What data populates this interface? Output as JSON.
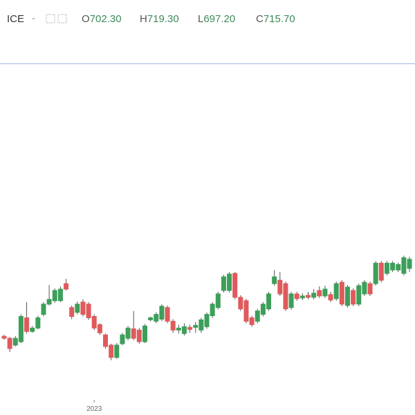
{
  "header": {
    "symbol": "ICE",
    "ohlc": [
      {
        "key": "O",
        "value": "702.30"
      },
      {
        "key": "H",
        "value": "719.30"
      },
      {
        "key": "L",
        "value": "697.20"
      },
      {
        "key": "C",
        "value": "715.70"
      }
    ]
  },
  "chart_data": {
    "type": "candlestick",
    "categories": [
      null,
      null,
      null,
      null,
      null,
      null,
      null,
      null,
      null,
      null,
      null,
      null,
      null,
      null,
      null,
      null,
      "2023",
      null,
      null,
      null,
      null,
      null,
      null,
      null,
      null,
      null,
      null,
      null,
      null,
      null,
      null,
      null,
      null,
      null,
      null,
      null,
      null,
      null,
      null,
      null,
      null,
      null,
      null,
      null,
      null,
      null,
      null,
      null,
      null,
      null,
      null,
      null,
      null,
      null,
      null,
      null,
      null,
      null,
      null,
      null,
      null,
      null,
      null,
      null,
      null,
      null,
      null,
      null,
      null,
      null,
      null,
      null,
      null
    ],
    "open": [
      603,
      600,
      590,
      595,
      630,
      610,
      615,
      635,
      650,
      655,
      655,
      680,
      645,
      638,
      653,
      650,
      632,
      620,
      605,
      590,
      572,
      592,
      600,
      614,
      612,
      595,
      627,
      625,
      628,
      645,
      625,
      612,
      607,
      616,
      616,
      612,
      617,
      633,
      645,
      670,
      670,
      695,
      660,
      655,
      630,
      625,
      635,
      643,
      680,
      685,
      680,
      645,
      665,
      659,
      663,
      660,
      670,
      662,
      664,
      658,
      682,
      648,
      670,
      650,
      665,
      680,
      680,
      710,
      695,
      700,
      700,
      695,
      702.3
    ],
    "high": [
      605,
      602,
      603,
      635,
      653,
      618,
      633,
      653,
      678,
      673,
      676,
      687,
      648,
      654,
      657,
      653,
      635,
      622,
      607,
      592,
      593,
      608,
      618,
      640,
      615,
      621,
      632,
      638,
      650,
      648,
      628,
      620,
      622,
      620,
      624,
      630,
      638,
      653,
      668,
      693,
      697,
      697,
      663,
      658,
      633,
      643,
      653,
      668,
      700,
      697,
      683,
      668,
      668,
      666,
      668,
      672,
      676,
      677,
      668,
      683,
      685,
      678,
      673,
      680,
      685,
      683,
      713,
      713,
      713,
      713,
      711,
      721,
      719.3
    ],
    "low": [
      598,
      580,
      588,
      593,
      607,
      608,
      613,
      632,
      648,
      652,
      653,
      670,
      628,
      635,
      632,
      627,
      612,
      605,
      585,
      568,
      570,
      590,
      597,
      597,
      592,
      593,
      625,
      622,
      625,
      622,
      608,
      607,
      604,
      608,
      608,
      608,
      614,
      630,
      642,
      667,
      667,
      657,
      640,
      622,
      617,
      622,
      632,
      640,
      677,
      662,
      640,
      642,
      655,
      656,
      657,
      657,
      659,
      659,
      653,
      655,
      647,
      645,
      647,
      647,
      662,
      662,
      677,
      682,
      692,
      697,
      697,
      692,
      697.2
    ],
    "close": [
      600,
      585,
      600,
      632,
      610,
      615,
      630,
      650,
      657,
      670,
      672,
      672,
      632,
      650,
      635,
      630,
      615,
      608,
      588,
      572,
      590,
      605,
      615,
      600,
      595,
      618,
      630,
      635,
      647,
      625,
      612,
      615,
      617,
      613,
      619,
      627,
      635,
      650,
      665,
      690,
      694,
      660,
      643,
      625,
      620,
      640,
      650,
      665,
      690,
      665,
      643,
      665,
      658,
      662,
      660,
      666,
      662,
      672,
      656,
      680,
      650,
      675,
      650,
      677,
      682,
      665,
      710,
      685,
      710,
      710,
      708,
      718,
      715.7
    ],
    "up_color": "#3d9f5a",
    "down_color": "#e05a5c",
    "ylim": [
      510,
      1000
    ]
  }
}
